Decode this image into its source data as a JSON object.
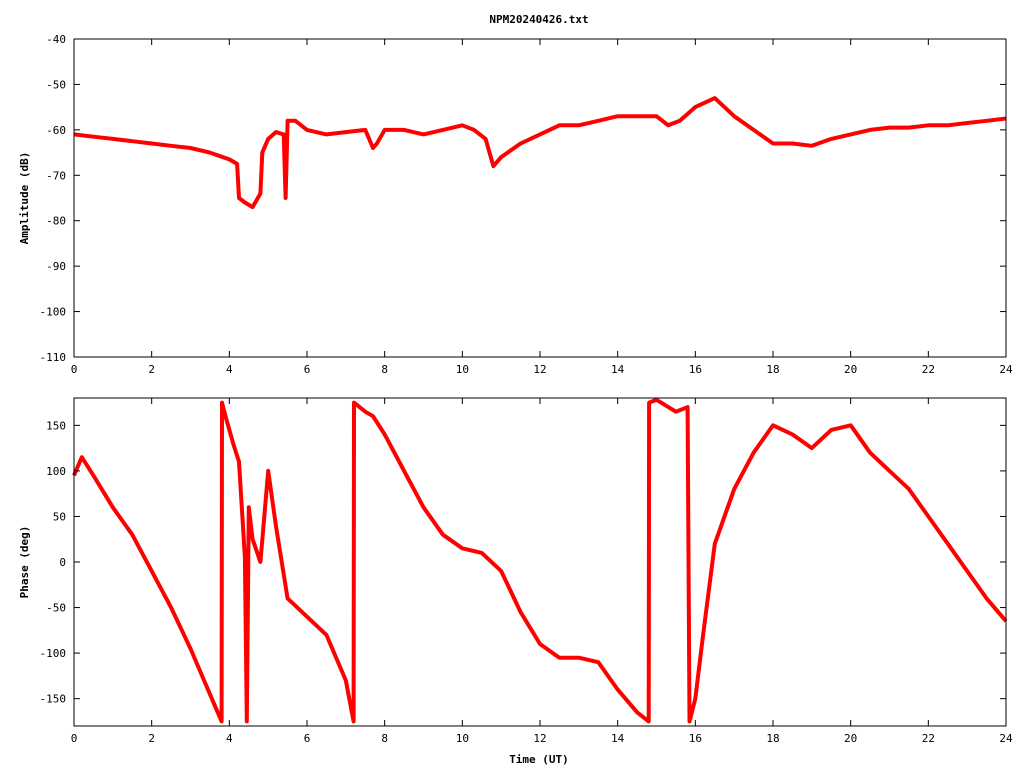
{
  "chart_data": [
    {
      "type": "line",
      "title": "NPM20240426.txt",
      "xlabel": "",
      "ylabel": "Amplitude (dB)",
      "xlim": [
        0,
        24
      ],
      "ylim": [
        -110,
        -40
      ],
      "xticks": [
        "0",
        "2",
        "4",
        "6",
        "8",
        "10",
        "12",
        "14",
        "16",
        "18",
        "20",
        "22",
        "24"
      ],
      "yticks": [
        "-40",
        "-50",
        "-60",
        "-70",
        "-80",
        "-90",
        "-100",
        "-110"
      ],
      "grid": false,
      "color": "#ff0000",
      "series": [
        {
          "x": [
            0,
            0.5,
            1,
            1.5,
            2,
            2.5,
            3,
            3.5,
            4,
            4.2,
            4.25,
            4.4,
            4.6,
            4.8,
            4.85,
            5.0,
            5.2,
            5.4,
            5.45,
            5.5,
            5.7,
            6,
            6.5,
            7,
            7.5,
            7.7,
            7.8,
            8,
            8.5,
            9,
            9.5,
            10,
            10.3,
            10.6,
            10.8,
            11,
            11.5,
            12,
            12.5,
            13,
            13.5,
            14,
            14.5,
            15,
            15.3,
            15.6,
            16,
            16.5,
            17,
            17.5,
            18,
            18.5,
            19,
            19.5,
            20,
            20.5,
            21,
            21.5,
            22,
            22.5,
            23,
            23.5,
            24
          ],
          "y": [
            -61,
            -61.5,
            -62,
            -62.5,
            -63,
            -63.5,
            -64,
            -65,
            -66.5,
            -67.5,
            -75,
            -76,
            -77,
            -74,
            -65,
            -62,
            -60.5,
            -61,
            -75,
            -58,
            -58,
            -60,
            -61,
            -60.5,
            -60,
            -64,
            -63,
            -60,
            -60,
            -61,
            -60,
            -59,
            -60,
            -62,
            -68,
            -66,
            -63,
            -61,
            -59,
            -59,
            -58,
            -57,
            -57,
            -57,
            -59,
            -58,
            -55,
            -53,
            -57,
            -60,
            -63,
            -63,
            -63.5,
            -62,
            -61,
            -60,
            -59.5,
            -59.5,
            -59,
            -59,
            -58.5,
            -58,
            -57.5
          ]
        }
      ]
    },
    {
      "type": "line",
      "title": "",
      "xlabel": "Time (UT)",
      "ylabel": "Phase (deg)",
      "xlim": [
        0,
        24
      ],
      "ylim": [
        -180,
        180
      ],
      "xticks": [
        "0",
        "2",
        "4",
        "6",
        "8",
        "10",
        "12",
        "14",
        "16",
        "18",
        "20",
        "22",
        "24"
      ],
      "yticks": [
        "150",
        "100",
        "50",
        "0",
        "-50",
        "-100",
        "-150"
      ],
      "grid": false,
      "color": "#ff0000",
      "series": [
        {
          "x": [
            0,
            0.2,
            0.5,
            1,
            1.5,
            2,
            2.5,
            3,
            3.5,
            3.8,
            3.81,
            3.9,
            4.1,
            4.25,
            4.4,
            4.45,
            4.5,
            4.6,
            4.8,
            5.0,
            5.2,
            5.5,
            6,
            6.5,
            7,
            7.2,
            7.21,
            7.5,
            7.7,
            8,
            8.5,
            9,
            9.5,
            10,
            10.5,
            11,
            11.5,
            12,
            12.5,
            13,
            13.5,
            14,
            14.5,
            14.8,
            14.81,
            15,
            15.5,
            15.8,
            15.85,
            16,
            16.2,
            16.5,
            17,
            17.5,
            18,
            18.5,
            19,
            19.5,
            20,
            20.5,
            21,
            21.5,
            22,
            22.5,
            23,
            23.5,
            24
          ],
          "y": [
            95,
            115,
            95,
            60,
            30,
            -10,
            -50,
            -95,
            -145,
            -175,
            175,
            160,
            130,
            110,
            5,
            -175,
            60,
            25,
            0,
            100,
            40,
            -40,
            -60,
            -80,
            -130,
            -175,
            175,
            165,
            160,
            140,
            100,
            60,
            30,
            15,
            10,
            -10,
            -55,
            -90,
            -105,
            -105,
            -110,
            -140,
            -165,
            -175,
            175,
            178,
            165,
            170,
            -175,
            -150,
            -80,
            20,
            80,
            120,
            150,
            140,
            125,
            145,
            150,
            120,
            100,
            80,
            50,
            20,
            -10,
            -40,
            -65
          ]
        }
      ]
    }
  ]
}
